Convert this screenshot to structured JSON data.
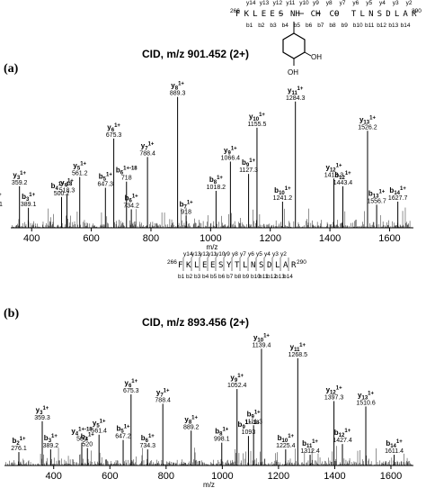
{
  "chart_data": [
    {
      "type": "bar",
      "panel": "(a)",
      "title": "CID, m/z 901.452 (2+)",
      "xlabel": "m/z",
      "xlim": [
        330,
        1680
      ],
      "xticks": [
        400,
        600,
        800,
        1000,
        1200,
        1400,
        1600
      ],
      "peptide": {
        "start": "266",
        "end": "290",
        "residues": [
          "F",
          "K",
          "L",
          "E",
          "E",
          "S",
          "NH",
          "CH",
          "CO",
          "T",
          "L",
          "N",
          "S",
          "D",
          "L",
          "A",
          "R"
        ],
        "y_ions": [
          "y14",
          "y13",
          "y12",
          "y11",
          "y10",
          "y9",
          "y8",
          "y7",
          "y6",
          "y5",
          "y4",
          "y3",
          "y2"
        ],
        "b_ions": [
          "b1",
          "b2",
          "b3",
          "b4",
          "b5",
          "b6",
          "b7",
          "b8",
          "b9",
          "b10",
          "b11",
          "b12",
          "b13",
          "b14"
        ],
        "modification": [
          "OH",
          "OH"
        ]
      },
      "peaks": [
        {
          "ion": "b2",
          "charge": "1+",
          "mz": 276.1,
          "intensity": 0.13
        },
        {
          "ion": "y3",
          "charge": "1+",
          "mz": 359.2,
          "intensity": 0.27
        },
        {
          "ion": "b3",
          "charge": "1+",
          "mz": 389.1,
          "intensity": 0.13
        },
        {
          "ion": "b4",
          "charge": "1+-18",
          "mz": 500.2,
          "intensity": 0.2
        },
        {
          "ion": "y4",
          "charge": "1+",
          "mz": 518.3,
          "intensity": 0.22
        },
        {
          "ion": "y5",
          "charge": "1+",
          "mz": 561.2,
          "intensity": 0.33
        },
        {
          "ion": "b5",
          "charge": "1+",
          "mz": 647.3,
          "intensity": 0.26
        },
        {
          "ion": "y6",
          "charge": "1+",
          "mz": 675.3,
          "intensity": 0.58
        },
        {
          "ion": "b6",
          "charge": "1+-18",
          "mz": 718.0,
          "intensity": 0.3
        },
        {
          "ion": "b6",
          "charge": "1+",
          "mz": 734.2,
          "intensity": 0.12
        },
        {
          "ion": "y7",
          "charge": "1+",
          "mz": 788.4,
          "intensity": 0.46
        },
        {
          "ion": "y8",
          "charge": "1+",
          "mz": 889.3,
          "intensity": 0.85
        },
        {
          "ion": "b7",
          "charge": "1+",
          "mz": 918.0,
          "intensity": 0.08
        },
        {
          "ion": "b8",
          "charge": "1+",
          "mz": 1018.2,
          "intensity": 0.24
        },
        {
          "ion": "y9",
          "charge": "1+",
          "mz": 1066.4,
          "intensity": 0.43
        },
        {
          "ion": "b9",
          "charge": "1+",
          "mz": 1127.3,
          "intensity": 0.35
        },
        {
          "ion": "y10",
          "charge": "1+",
          "mz": 1155.5,
          "intensity": 0.65
        },
        {
          "ion": "b10",
          "charge": "1+",
          "mz": 1241.2,
          "intensity": 0.17
        },
        {
          "ion": "y11",
          "charge": "1+",
          "mz": 1284.3,
          "intensity": 0.82
        },
        {
          "ion": "y12",
          "charge": "1+",
          "mz": 1413.3,
          "intensity": 0.32
        },
        {
          "ion": "b12",
          "charge": "1+",
          "mz": 1443.4,
          "intensity": 0.27
        },
        {
          "ion": "y13",
          "charge": "1+",
          "mz": 1526.2,
          "intensity": 0.63
        },
        {
          "ion": "b13",
          "charge": "1+",
          "mz": 1556.7,
          "intensity": 0.15
        },
        {
          "ion": "b14",
          "charge": "1+",
          "mz": 1627.7,
          "intensity": 0.17
        }
      ]
    },
    {
      "type": "bar",
      "panel": "(b)",
      "title": "CID, m/z 893.456 (2+)",
      "xlabel": "m/z",
      "xlim": [
        225,
        1680
      ],
      "xticks": [
        400,
        600,
        800,
        1000,
        1200,
        1400,
        1600
      ],
      "peptide": {
        "start": "266",
        "end": "290",
        "residues": [
          "F",
          "K",
          "L",
          "E",
          "E",
          "S",
          "Y",
          "T",
          "L",
          "N",
          "S",
          "D",
          "L",
          "A",
          "R"
        ],
        "y_ions": [
          "y14",
          "y13",
          "y12",
          "y11",
          "y10",
          "y9",
          "y8",
          "y7",
          "y6",
          "y5",
          "y4",
          "y3",
          "y2"
        ],
        "b_ions": [
          "b1",
          "b2",
          "b3",
          "b4",
          "b5",
          "b6",
          "b7",
          "b8",
          "b9",
          "b10",
          "b11",
          "b12",
          "b13",
          "b14"
        ]
      },
      "peaks": [
        {
          "ion": "b2",
          "charge": "1+",
          "mz": 276.1,
          "intensity": 0.1
        },
        {
          "ion": "y3",
          "charge": "1+",
          "mz": 359.3,
          "intensity": 0.33
        },
        {
          "ion": "b3",
          "charge": "1+",
          "mz": 389.2,
          "intensity": 0.12
        },
        {
          "ion": "y4",
          "charge": "1+-18",
          "mz": 500.0,
          "intensity": 0.17
        },
        {
          "ion": "y5",
          "charge": "1+",
          "mz": 561.4,
          "intensity": 0.23
        },
        {
          "ion": "b4",
          "charge": "1+",
          "mz": 520.0,
          "intensity": 0.13
        },
        {
          "ion": "b5",
          "charge": "1+",
          "mz": 647.2,
          "intensity": 0.19
        },
        {
          "ion": "y6",
          "charge": "1+",
          "mz": 675.3,
          "intensity": 0.53
        },
        {
          "ion": "b6",
          "charge": "1+",
          "mz": 734.3,
          "intensity": 0.12
        },
        {
          "ion": "y7",
          "charge": "1+",
          "mz": 788.4,
          "intensity": 0.46
        },
        {
          "ion": "y8",
          "charge": "1+",
          "mz": 889.2,
          "intensity": 0.26
        },
        {
          "ion": "b8",
          "charge": "1+",
          "mz": 998.1,
          "intensity": 0.17
        },
        {
          "ion": "y9",
          "charge": "1+",
          "mz": 1052.4,
          "intensity": 0.57
        },
        {
          "ion": "b9",
          "charge": "1+",
          "mz": 1111.3,
          "intensity": 0.3
        },
        {
          "ion": "b9",
          "charge": "1+-18",
          "mz": 1093.0,
          "intensity": 0.22
        },
        {
          "ion": "y10",
          "charge": "1+",
          "mz": 1139.4,
          "intensity": 0.87
        },
        {
          "ion": "b10",
          "charge": "1+",
          "mz": 1225.4,
          "intensity": 0.12
        },
        {
          "ion": "y11",
          "charge": "1+",
          "mz": 1268.5,
          "intensity": 0.8
        },
        {
          "ion": "b11",
          "charge": "1+",
          "mz": 1312.4,
          "intensity": 0.08
        },
        {
          "ion": "y12",
          "charge": "1+",
          "mz": 1397.3,
          "intensity": 0.48
        },
        {
          "ion": "b12",
          "charge": "1+",
          "mz": 1427.4,
          "intensity": 0.16
        },
        {
          "ion": "y13",
          "charge": "1+",
          "mz": 1510.6,
          "intensity": 0.44
        },
        {
          "ion": "b14",
          "charge": "1+",
          "mz": 1611.4,
          "intensity": 0.08
        }
      ]
    }
  ]
}
